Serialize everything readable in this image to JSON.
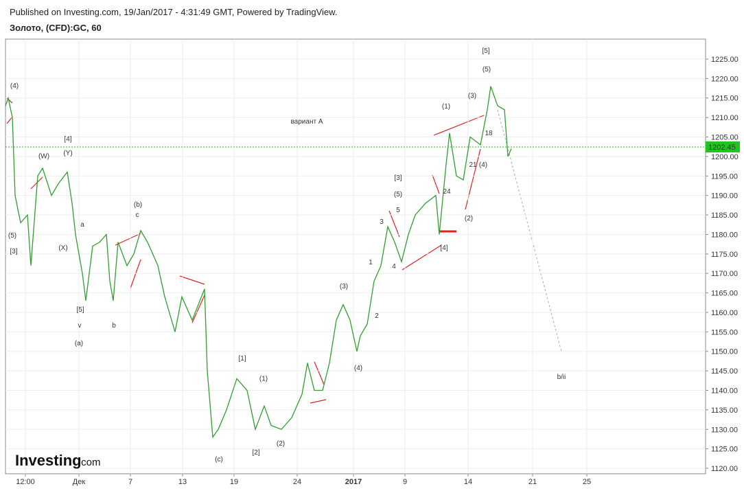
{
  "chart_data": {
    "type": "line",
    "published": "Published on Investing.com, 19/Jan/2017 - 4:31:49 GMT, Powered by TradingView.",
    "title": "Золото, (CFD):GC, 60",
    "brand": "Investing",
    "brand_suffix": ".com",
    "series": [
      {
        "name": "GC",
        "color": "#2f9e2f",
        "x": [
          0,
          0.4,
          1,
          1.4,
          2.2,
          3.2,
          3.7,
          4.7,
          5.4,
          6.7,
          7.7,
          9,
          9.7,
          10.2,
          11.2,
          11.7,
          12.7,
          13.7,
          14.7,
          15.2,
          15.7,
          16.4,
          17.7,
          18.7,
          19.7,
          20.7,
          22.2,
          23.2,
          24.7,
          25.7,
          27.2,
          29,
          29.4,
          30.2,
          31,
          32.2,
          33.7,
          35.2,
          36.4,
          37.7,
          38.7,
          40.2,
          41.7,
          43.2,
          44,
          45,
          46.2,
          47.2,
          48.2,
          49.2,
          50.2,
          51.2,
          51.7,
          52.7,
          53.7,
          54.7,
          55.7,
          56.7,
          57.7,
          58.7,
          59.7,
          61.2,
          62.7,
          63.2,
          64.2,
          64.7,
          65.7,
          66.7,
          67.7,
          69.2,
          70.2,
          70.7,
          71.7,
          72.7,
          73.2,
          73.7
        ],
        "values": [
          1213,
          1215,
          1210,
          1190,
          1183,
          1185,
          1172,
          1195,
          1197,
          1190,
          1193,
          1196,
          1188,
          1180,
          1170,
          1163,
          1177,
          1178,
          1180,
          1168,
          1163,
          1178,
          1172,
          1175,
          1181,
          1178,
          1172,
          1164,
          1155,
          1164,
          1158,
          1166,
          1145,
          1128,
          1130,
          1135,
          1143,
          1140,
          1130,
          1136,
          1131,
          1130,
          1133,
          1139,
          1147,
          1140,
          1140,
          1147,
          1158,
          1162,
          1158,
          1150,
          1154,
          1157,
          1168,
          1172,
          1182,
          1178,
          1173,
          1180,
          1185,
          1188,
          1190,
          1180,
          1198,
          1206,
          1195,
          1194,
          1205,
          1203,
          1212,
          1218,
          1213,
          1212,
          1200,
          1202
        ]
      }
    ],
    "last_price": 1202.45,
    "xlim": [
      0,
      102
    ],
    "xticks": [
      {
        "value": 2.9,
        "label": "12:00"
      },
      {
        "value": 10.7,
        "label": "Дек"
      },
      {
        "value": 18.2,
        "label": "7"
      },
      {
        "value": 25.8,
        "label": "13"
      },
      {
        "value": 33.3,
        "label": "19"
      },
      {
        "value": 42.5,
        "label": "24"
      },
      {
        "value": 50.7,
        "label": "2017"
      },
      {
        "value": 58.2,
        "label": "9"
      },
      {
        "value": 67.4,
        "label": "14"
      },
      {
        "value": 76.8,
        "label": "21"
      },
      {
        "value": 84.7,
        "label": "25"
      }
    ],
    "ylim": [
      1118.6,
      1230.1
    ],
    "yticks": [
      {
        "value": 1120,
        "label": "1120.00"
      },
      {
        "value": 1125,
        "label": "1125.00"
      },
      {
        "value": 1130,
        "label": "1130.00"
      },
      {
        "value": 1135,
        "label": "1135.00"
      },
      {
        "value": 1140,
        "label": "1140.00"
      },
      {
        "value": 1145,
        "label": "1145.00"
      },
      {
        "value": 1150,
        "label": "1150.00"
      },
      {
        "value": 1155,
        "label": "1155.00"
      },
      {
        "value": 1160,
        "label": "1160.00"
      },
      {
        "value": 1165,
        "label": "1165.00"
      },
      {
        "value": 1170,
        "label": "1170.00"
      },
      {
        "value": 1175,
        "label": "1175.00"
      },
      {
        "value": 1180,
        "label": "1180.00"
      },
      {
        "value": 1185,
        "label": "1185.00"
      },
      {
        "value": 1190,
        "label": "1190.00"
      },
      {
        "value": 1195,
        "label": "1195.00"
      },
      {
        "value": 1200,
        "label": "1200.00"
      },
      {
        "value": 1205,
        "label": "1205.00"
      },
      {
        "value": 1210,
        "label": "1210.00"
      },
      {
        "value": 1215,
        "label": "1215.00"
      },
      {
        "value": 1220,
        "label": "1220.00"
      },
      {
        "value": 1225,
        "label": "1225.00"
      }
    ],
    "grid": true,
    "annotations": [
      {
        "text": "(4)",
        "x": 1.3,
        "y": 1217.6
      },
      {
        "text": "(W)",
        "x": 5.6,
        "y": 1199.5
      },
      {
        "text": "[4]",
        "x": 9.1,
        "y": 1203.9
      },
      {
        "text": "(Y)",
        "x": 9.1,
        "y": 1200.3
      },
      {
        "text": "(5)",
        "x": 1.0,
        "y": 1179.2
      },
      {
        "text": "[3]",
        "x": 1.2,
        "y": 1175.1
      },
      {
        "text": "(X)",
        "x": 8.4,
        "y": 1176.0
      },
      {
        "text": "a",
        "x": 11.2,
        "y": 1182.0
      },
      {
        "text": "[5]",
        "x": 10.9,
        "y": 1160.2
      },
      {
        "text": "v",
        "x": 10.8,
        "y": 1156.1
      },
      {
        "text": "(a)",
        "x": 10.7,
        "y": 1151.5
      },
      {
        "text": "(b)",
        "x": 19.3,
        "y": 1187.1
      },
      {
        "text": "c",
        "x": 19.2,
        "y": 1184.5
      },
      {
        "text": "b",
        "x": 15.8,
        "y": 1156.1
      },
      {
        "text": "вариант A",
        "x": 43.9,
        "y": 1208.4
      },
      {
        "text": "[1]",
        "x": 34.5,
        "y": 1147.7
      },
      {
        "text": "(1)",
        "x": 37.6,
        "y": 1142.5
      },
      {
        "text": "(c)",
        "x": 31.1,
        "y": 1121.8
      },
      {
        "text": "[2]",
        "x": 36.5,
        "y": 1123.5
      },
      {
        "text": "(2)",
        "x": 40.1,
        "y": 1125.8
      },
      {
        "text": "(3)",
        "x": 49.3,
        "y": 1166.2
      },
      {
        "text": "(4)",
        "x": 51.4,
        "y": 1145.2
      },
      {
        "text": "1",
        "x": 53.2,
        "y": 1172.3
      },
      {
        "text": "2",
        "x": 54.1,
        "y": 1158.6
      },
      {
        "text": "3",
        "x": 54.8,
        "y": 1182.7
      },
      {
        "text": "4",
        "x": 56.6,
        "y": 1171.3
      },
      {
        "text": "5",
        "x": 57.2,
        "y": 1185.7
      },
      {
        "text": "[3]",
        "x": 57.2,
        "y": 1194.0
      },
      {
        "text": "(5)",
        "x": 57.2,
        "y": 1189.8
      },
      {
        "text": "(1)",
        "x": 64.2,
        "y": 1212.3
      },
      {
        "text": "(3)",
        "x": 68.0,
        "y": 1215.0
      },
      {
        "text": "[5]",
        "x": 70.0,
        "y": 1226.6
      },
      {
        "text": "(5)",
        "x": 70.1,
        "y": 1221.8
      },
      {
        "text": "24",
        "x": 64.3,
        "y": 1190.5
      },
      {
        "text": "21",
        "x": 68.1,
        "y": 1197.3
      },
      {
        "text": "(4)",
        "x": 69.6,
        "y": 1197.3
      },
      {
        "text": "18",
        "x": 70.4,
        "y": 1205.4
      },
      {
        "text": "(2)",
        "x": 67.5,
        "y": 1183.6
      },
      {
        "text": "[4]",
        "x": 63.9,
        "y": 1176.0
      },
      {
        "text": "b/ii",
        "x": 81.0,
        "y": 1142.9
      }
    ]
  }
}
